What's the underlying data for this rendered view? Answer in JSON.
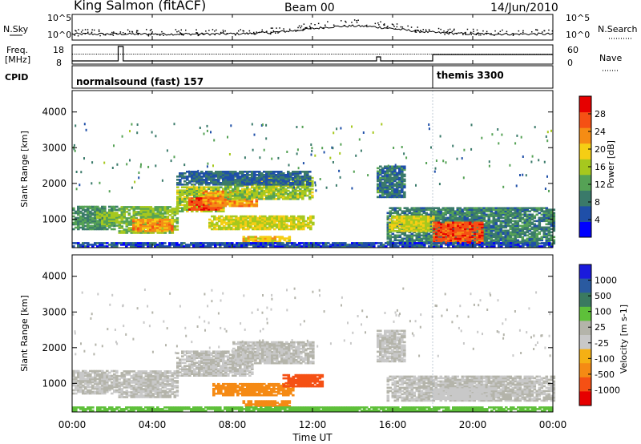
{
  "header": {
    "station": "King Salmon (fitACF)",
    "beam": "Beam 00",
    "date": "14/Jun/2010"
  },
  "noise_panel": {
    "left_label": "N.Sky",
    "right_label": "N.Search",
    "y_ticks": [
      "10^5",
      "10^0"
    ]
  },
  "freq_panel": {
    "left_label_line1": "Freq.",
    "left_label_line2": "[MHz]",
    "left_ticks": [
      "18",
      "8"
    ],
    "right_label": "Nave",
    "right_ticks": [
      "60",
      "0"
    ]
  },
  "cpid": {
    "label": "CPID",
    "programs": [
      "normalsound (fast) 157",
      "themis 3300"
    ]
  },
  "x_axis": {
    "label": "Time UT",
    "ticks": [
      "00:00",
      "04:00",
      "08:00",
      "12:00",
      "16:00",
      "20:00",
      "00:00"
    ]
  },
  "colors": {
    "power": [
      "#0000ff",
      "#1f4fa8",
      "#3a7a6a",
      "#55a255",
      "#a6c81e",
      "#f5ce14",
      "#f58c14",
      "#f55014",
      "#e60000"
    ],
    "velocity": [
      "#1a1adc",
      "#2a5aa0",
      "#3a7a60",
      "#5ec03a",
      "#b4b4aa",
      "#c8c8c8",
      "#f5b014",
      "#f58a14",
      "#f55014",
      "#e60000"
    ]
  },
  "chart_data": [
    {
      "type": "heatmap",
      "panel": "power",
      "xlabel": "Time UT",
      "ylabel": "Slant Range [km]",
      "xlim": [
        0,
        24
      ],
      "ylim": [
        200,
        4600
      ],
      "y_ticks": [
        "1000",
        "2000",
        "3000",
        "4000"
      ],
      "colorbar": {
        "label": "Power [dB]",
        "ticks": [
          "4",
          "8",
          "12",
          "16",
          "20",
          "24",
          "28"
        ],
        "range": [
          0,
          31
        ]
      },
      "blobs": [
        {
          "t0": 0.0,
          "t1": 2.2,
          "r0": 700,
          "r1": 1350,
          "v": 10
        },
        {
          "t0": 1.2,
          "t1": 2.2,
          "r0": 800,
          "r1": 1200,
          "v": 14
        },
        {
          "t0": 2.3,
          "t1": 5.2,
          "r0": 600,
          "r1": 1350,
          "v": 14
        },
        {
          "t0": 3.0,
          "t1": 5.0,
          "r0": 650,
          "r1": 1000,
          "v": 22
        },
        {
          "t0": 5.2,
          "t1": 7.6,
          "r0": 1200,
          "r1": 1900,
          "v": 15
        },
        {
          "t0": 5.8,
          "t1": 7.4,
          "r0": 1250,
          "r1": 1600,
          "v": 27
        },
        {
          "t0": 6.5,
          "t1": 9.2,
          "r0": 1350,
          "r1": 1800,
          "v": 22
        },
        {
          "t0": 7.6,
          "t1": 12.0,
          "r0": 1550,
          "r1": 2150,
          "v": 15
        },
        {
          "t0": 6.8,
          "t1": 12.0,
          "r0": 700,
          "r1": 1100,
          "v": 17
        },
        {
          "t0": 8.5,
          "t1": 10.8,
          "r0": 350,
          "r1": 520,
          "v": 19
        },
        {
          "t0": 5.2,
          "t1": 11.8,
          "r0": 1950,
          "r1": 2350,
          "v": 7
        },
        {
          "t0": 15.7,
          "t1": 24.0,
          "r0": 300,
          "r1": 1300,
          "v": 9
        },
        {
          "t0": 15.8,
          "t1": 18.0,
          "r0": 650,
          "r1": 1100,
          "v": 17
        },
        {
          "t0": 18.0,
          "t1": 20.5,
          "r0": 300,
          "r1": 900,
          "v": 26
        },
        {
          "t0": 15.2,
          "t1": 16.6,
          "r0": 1600,
          "r1": 2500,
          "v": 8
        },
        {
          "t0": 0.0,
          "t1": 24.0,
          "r0": 220,
          "r1": 330,
          "v": 5
        }
      ]
    },
    {
      "type": "heatmap",
      "panel": "velocity",
      "xlabel": "Time UT",
      "ylabel": "Slant Range [km]",
      "xlim": [
        0,
        24
      ],
      "ylim": [
        200,
        4600
      ],
      "y_ticks": [
        "1000",
        "2000",
        "3000",
        "4000"
      ],
      "colorbar": {
        "label": "Velocity [m s-1]",
        "ticks": [
          "1000",
          "500",
          "100",
          "25",
          "-25",
          "-100",
          "-500",
          "-1000"
        ]
      },
      "blobs": [
        {
          "t0": 0.0,
          "t1": 2.2,
          "r0": 700,
          "r1": 1350,
          "v": 0
        },
        {
          "t0": 2.3,
          "t1": 5.2,
          "r0": 600,
          "r1": 1350,
          "v": 0
        },
        {
          "t0": 5.2,
          "t1": 9.0,
          "r0": 1200,
          "r1": 1900,
          "v": 0
        },
        {
          "t0": 8.0,
          "t1": 12.0,
          "r0": 1550,
          "r1": 2150,
          "v": 0
        },
        {
          "t0": 7.0,
          "t1": 11.0,
          "r0": 650,
          "r1": 1000,
          "v": -150
        },
        {
          "t0": 10.5,
          "t1": 12.5,
          "r0": 900,
          "r1": 1250,
          "v": -300
        },
        {
          "t0": 8.5,
          "t1": 10.8,
          "r0": 350,
          "r1": 520,
          "v": -150
        },
        {
          "t0": 15.7,
          "t1": 24.0,
          "r0": 500,
          "r1": 1200,
          "v": 0
        },
        {
          "t0": 18.0,
          "t1": 20.8,
          "r0": 550,
          "r1": 850,
          "v": -20
        },
        {
          "t0": 15.2,
          "t1": 16.6,
          "r0": 1600,
          "r1": 2500,
          "v": 0
        },
        {
          "t0": 0.0,
          "t1": 24.0,
          "r0": 220,
          "r1": 330,
          "v": 30
        }
      ]
    }
  ]
}
